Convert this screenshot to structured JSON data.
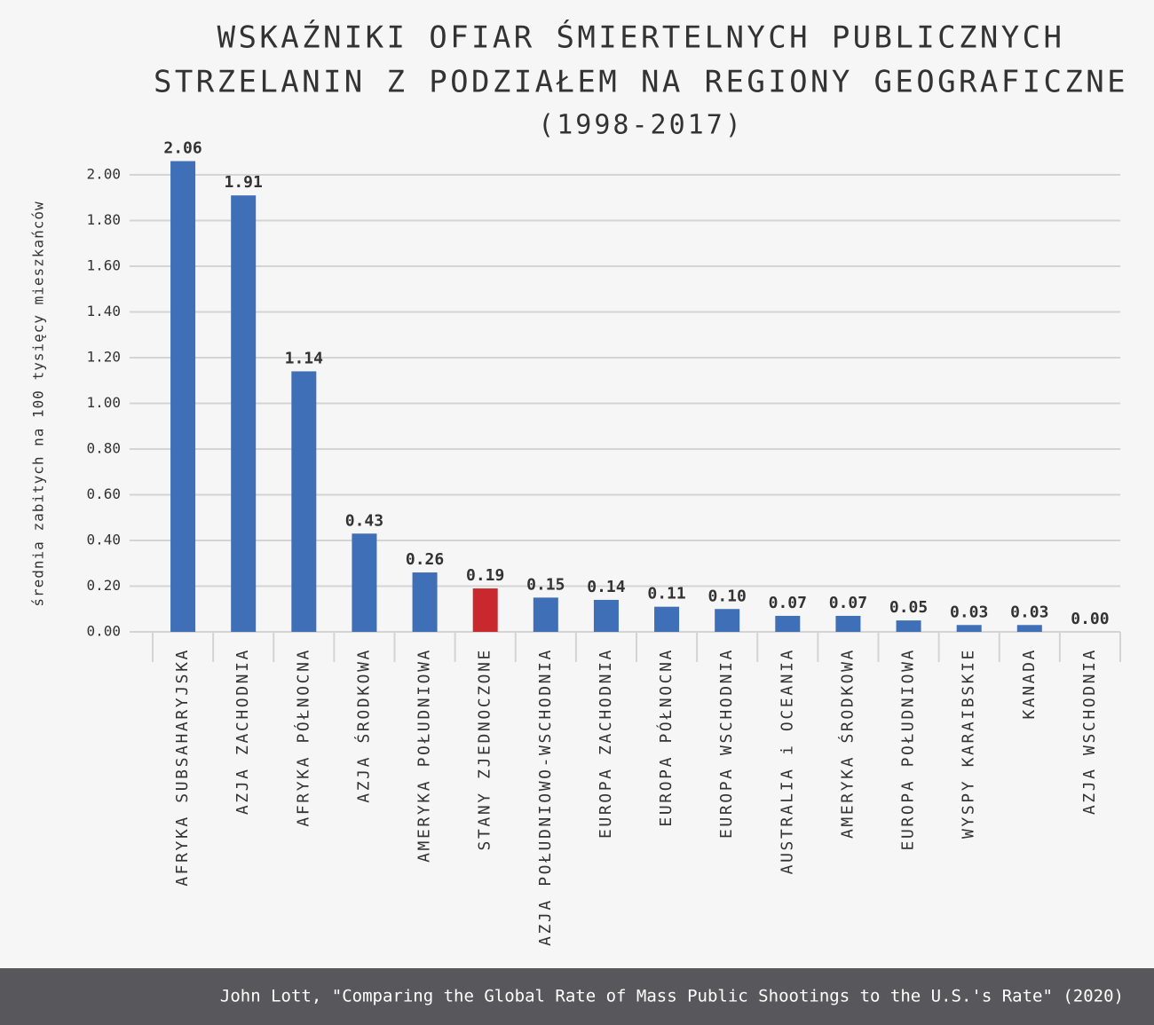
{
  "chart_data": {
    "type": "bar",
    "title": [
      "WSKAŹNIKI OFIAR ŚMIERTELNYCH PUBLICZNYCH",
      "STRZELANIN Z PODZIAŁEM NA REGIONY GEOGRAFICZNE"
    ],
    "subtitle": "(1998-2017)",
    "y_label": "średnia zabitych na 100 tysięcy mieszkańców",
    "source": "John Lott, \"Comparing the Global Rate of Mass Public Shootings to the U.S.'s Rate\" (2020)",
    "categories": [
      "AFRYKA SUBSAHARYJSKA",
      "AZJA ZACHODNIA",
      "AFRYKA PÓŁNOCNA",
      "AZJA ŚRODKOWA",
      "AMERYKA POŁUDNIOWA",
      "STANY ZJEDNOCZONE",
      "AZJA POŁUDNIOWO-WSCHODNIA",
      "EUROPA ZACHODNIA",
      "EUROPA PÓŁNOCNA",
      "EUROPA WSCHODNIA",
      "AUSTRALIA i OCEANIA",
      "AMERYKA ŚRODKOWA",
      "EUROPA POŁUDNIOWA",
      "WYSPY KARAIBSKIE",
      "KANADA",
      "AZJA WSCHODNIA"
    ],
    "values": [
      2.06,
      1.91,
      1.14,
      0.43,
      0.26,
      0.19,
      0.15,
      0.14,
      0.11,
      0.1,
      0.07,
      0.07,
      0.05,
      0.03,
      0.03,
      0.0
    ],
    "value_labels": [
      "2.06",
      "1.91",
      "1.14",
      "0.43",
      "0.26",
      "0.19",
      "0.15",
      "0.14",
      "0.11",
      "0.10",
      "0.07",
      "0.07",
      "0.05",
      "0.03",
      "0.03",
      "0.00"
    ],
    "colors": [
      "#3f6fb6",
      "#3f6fb6",
      "#3f6fb6",
      "#3f6fb6",
      "#3f6fb6",
      "#c8282e",
      "#3f6fb6",
      "#3f6fb6",
      "#3f6fb6",
      "#3f6fb6",
      "#3f6fb6",
      "#3f6fb6",
      "#3f6fb6",
      "#3f6fb6",
      "#3f6fb6",
      "#3f6fb6"
    ],
    "ylim": [
      0,
      2
    ],
    "yticks": [
      {
        "value": 0,
        "label": "0.00"
      },
      {
        "value": 0.2,
        "label": "0.20"
      },
      {
        "value": 0.4,
        "label": "0.40"
      },
      {
        "value": 0.6,
        "label": "0.60"
      },
      {
        "value": 0.8,
        "label": "0.80"
      },
      {
        "value": 1,
        "label": "1.00"
      },
      {
        "value": 1.2,
        "label": "1.20"
      },
      {
        "value": 1.4,
        "label": "1.40"
      },
      {
        "value": 1.6,
        "label": "1.60"
      },
      {
        "value": 1.8,
        "label": "1.80"
      },
      {
        "value": 2,
        "label": "2.00"
      }
    ],
    "grid": true
  }
}
